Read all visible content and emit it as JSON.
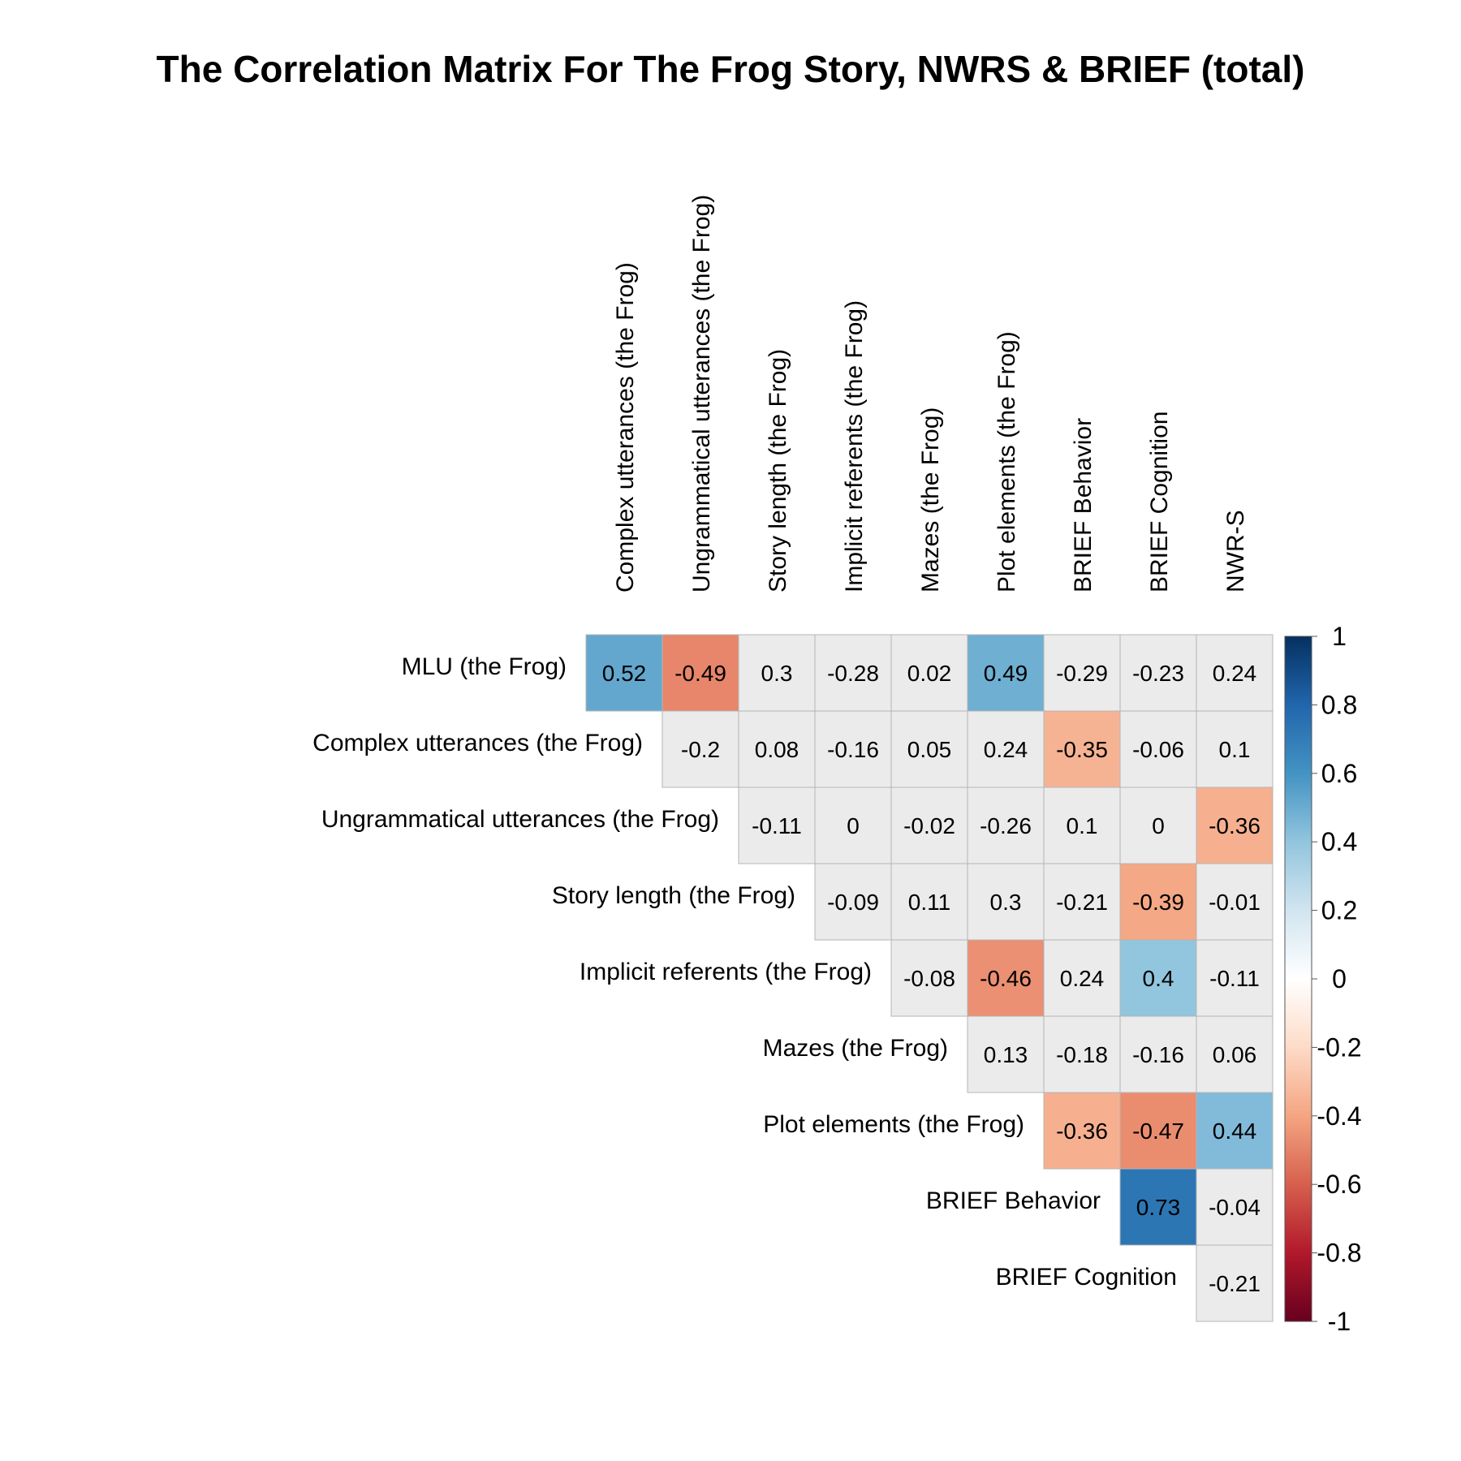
{
  "chart_data": {
    "type": "heatmap",
    "title": "The Correlation Matrix For The Frog Story, NWRS & BRIEF (total)",
    "row_labels": [
      "MLU (the Frog)",
      "Complex utterances (the Frog)",
      "Ungrammatical utterances (the Frog)",
      "Story length (the Frog)",
      "Implicit referents (the Frog)",
      "Mazes (the Frog)",
      "Plot elements (the Frog)",
      "BRIEF Behavior",
      "BRIEF Cognition"
    ],
    "col_labels": [
      "Complex utterances (the Frog)",
      "Ungrammatical utterances (the Frog)",
      "Story length (the Frog)",
      "Implicit referents (the Frog)",
      "Mazes (the Frog)",
      "Plot elements (the Frog)",
      "BRIEF Behavior",
      "BRIEF Cognition",
      "NWR-S"
    ],
    "values": [
      [
        0.52,
        -0.49,
        0.3,
        -0.28,
        0.02,
        0.49,
        -0.29,
        -0.23,
        0.24
      ],
      [
        null,
        -0.2,
        0.08,
        -0.16,
        0.05,
        0.24,
        -0.35,
        -0.06,
        0.1
      ],
      [
        null,
        null,
        -0.11,
        0,
        -0.02,
        -0.26,
        0.1,
        0,
        -0.36
      ],
      [
        null,
        null,
        null,
        -0.09,
        0.11,
        0.3,
        -0.21,
        -0.39,
        -0.01
      ],
      [
        null,
        null,
        null,
        null,
        -0.08,
        -0.46,
        0.24,
        0.4,
        -0.11
      ],
      [
        null,
        null,
        null,
        null,
        null,
        0.13,
        -0.18,
        -0.16,
        0.06
      ],
      [
        null,
        null,
        null,
        null,
        null,
        null,
        -0.36,
        -0.47,
        0.44
      ],
      [
        null,
        null,
        null,
        null,
        null,
        null,
        null,
        0.73,
        -0.04
      ],
      [
        null,
        null,
        null,
        null,
        null,
        null,
        null,
        null,
        -0.21
      ]
    ],
    "non_significant_fill": "#ebebeb",
    "colorbar": {
      "ticks": [
        "1",
        "0.8",
        "0.6",
        "0.4",
        "0.2",
        "0",
        "-0.2",
        "-0.4",
        "-0.6",
        "-0.8",
        "-1"
      ],
      "range": [
        -1,
        1
      ],
      "colors": [
        "#67001f",
        "#b2182b",
        "#d6604d",
        "#f4a582",
        "#fddbc7",
        "#ffffff",
        "#d1e5f0",
        "#92c5de",
        "#4393c3",
        "#2166ac",
        "#053061"
      ]
    }
  }
}
